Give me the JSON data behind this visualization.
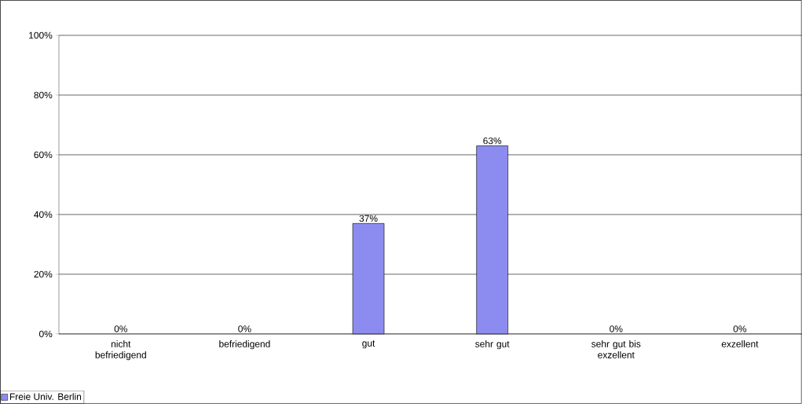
{
  "chart_data": {
    "type": "bar",
    "categories": [
      "nicht befriedigend",
      "befriedigend",
      "gut",
      "sehr gut",
      "sehr gut bis exzellent",
      "exzellent"
    ],
    "series": [
      {
        "name": "Freie Univ. Berlin",
        "color": "#8c8cf0",
        "values": [
          0,
          0,
          37,
          63,
          0,
          0
        ],
        "value_labels": [
          "0%",
          "0%",
          "37%",
          "63%",
          "0%",
          "0%"
        ]
      }
    ],
    "ylim": [
      0,
      100
    ],
    "yticks": [
      {
        "value": 0,
        "label": "0%"
      },
      {
        "value": 20,
        "label": "20%"
      },
      {
        "value": 40,
        "label": "40%"
      },
      {
        "value": 60,
        "label": "60%"
      },
      {
        "value": 80,
        "label": "80%"
      },
      {
        "value": 100,
        "label": "100%"
      }
    ],
    "grid": "y",
    "legend": "bottom left"
  }
}
